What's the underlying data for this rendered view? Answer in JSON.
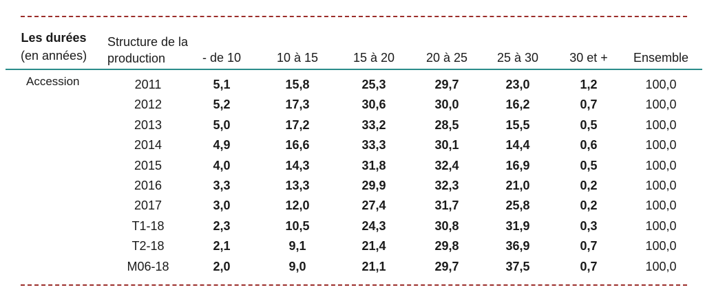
{
  "header": {
    "durations_title": "Les durées",
    "durations_unit": "(en années)",
    "structure_label": "Structure de la production",
    "columns": [
      "- de 10",
      "10 à 15",
      "15 à 20",
      "20 à 25",
      "25 à 30",
      "30 et +",
      "Ensemble"
    ]
  },
  "section_label": "Accession",
  "rows": [
    {
      "period": "2011",
      "values": [
        "5,1",
        "15,8",
        "25,3",
        "29,7",
        "23,0",
        "1,2"
      ],
      "total": "100,0"
    },
    {
      "period": "2012",
      "values": [
        "5,2",
        "17,3",
        "30,6",
        "30,0",
        "16,2",
        "0,7"
      ],
      "total": "100,0"
    },
    {
      "period": "2013",
      "values": [
        "5,0",
        "17,2",
        "33,2",
        "28,5",
        "15,5",
        "0,5"
      ],
      "total": "100,0"
    },
    {
      "period": "2014",
      "values": [
        "4,9",
        "16,6",
        "33,3",
        "30,1",
        "14,4",
        "0,6"
      ],
      "total": "100,0"
    },
    {
      "period": "2015",
      "values": [
        "4,0",
        "14,3",
        "31,8",
        "32,4",
        "16,9",
        "0,5"
      ],
      "total": "100,0"
    },
    {
      "period": "2016",
      "values": [
        "3,3",
        "13,3",
        "29,9",
        "32,3",
        "21,0",
        "0,2"
      ],
      "total": "100,0"
    },
    {
      "period": "2017",
      "values": [
        "3,0",
        "12,0",
        "27,4",
        "31,7",
        "25,8",
        "0,2"
      ],
      "total": "100,0"
    },
    {
      "period": "T1-18",
      "values": [
        "2,3",
        "10,5",
        "24,3",
        "30,8",
        "31,9",
        "0,3"
      ],
      "total": "100,0"
    },
    {
      "period": "T2-18",
      "values": [
        "2,1",
        "9,1",
        "21,4",
        "29,8",
        "36,9",
        "0,7"
      ],
      "total": "100,0"
    },
    {
      "period": "M06-18",
      "values": [
        "2,0",
        "9,0",
        "21,1",
        "29,7",
        "37,5",
        "0,7"
      ],
      "total": "100,0"
    }
  ]
}
